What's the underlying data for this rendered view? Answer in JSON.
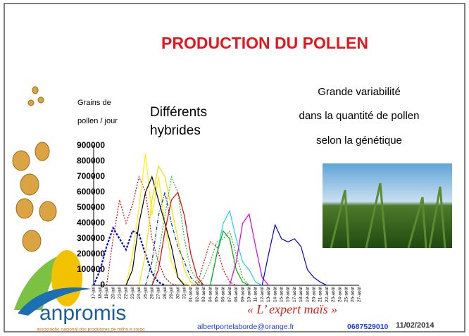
{
  "slide": {
    "title": "PRODUCTION DU POLLEN",
    "y_label": [
      "Grains de",
      "pollen / jour"
    ],
    "hybrid_note": [
      "Différents",
      "hybrides"
    ],
    "variability_note": [
      "Grande variabilité",
      "dans la quantité de pollen",
      "selon la génétique"
    ],
    "logo": "anpromis",
    "logo_subtitle": "associação nacional dos produtores de milho e sorgo",
    "slogan": "« L’ expert maïs »",
    "email": "albertportelaborde@orange.fr",
    "phone": "0687529010",
    "date": "11/02/2014"
  },
  "chart_data": {
    "type": "line",
    "categories": [
      "17-juil",
      "18-juil",
      "19-juil",
      "20-juil",
      "21-juil",
      "22-juil",
      "23-juil",
      "24-juil",
      "25-juil",
      "26-juil",
      "27-juil",
      "28-juil",
      "29-juil",
      "30-juil",
      "31-juil",
      "01-août",
      "02-août",
      "03-août",
      "04-août",
      "05-août",
      "06-août",
      "07-août",
      "08-août",
      "09-août",
      "10-août",
      "11-août",
      "12-août",
      "13-août",
      "14-août",
      "15-août",
      "16-août",
      "17-août",
      "18-août",
      "19-août",
      "20-août",
      "21-août",
      "22-août",
      "23-août",
      "24-août",
      "25-août",
      "26-août",
      "27-août"
    ],
    "ylim": [
      0,
      900000
    ],
    "yticks": [
      0,
      100000,
      200000,
      300000,
      400000,
      500000,
      600000,
      700000,
      800000,
      900000
    ],
    "series": [
      {
        "color": "#0000cc",
        "style": "dotted-thick",
        "values": [
          0,
          100000,
          250000,
          370000,
          300000,
          230000,
          350000,
          330000,
          200000,
          80000,
          20000,
          0,
          null,
          null,
          null,
          null,
          null,
          null,
          null,
          null,
          null,
          null,
          null,
          null,
          null,
          null,
          null,
          null,
          null,
          null,
          null,
          null,
          null,
          null,
          null,
          null,
          null,
          null,
          null,
          null,
          null,
          null
        ]
      },
      {
        "color": "#dd0000",
        "style": "dotted",
        "values": [
          null,
          null,
          0,
          300000,
          550000,
          400000,
          520000,
          700000,
          600000,
          300000,
          150000,
          50000,
          10000,
          0,
          null,
          null,
          null,
          null,
          null,
          null,
          null,
          null,
          null,
          null,
          null,
          null,
          null,
          null,
          null,
          null,
          null,
          null,
          null,
          null,
          null,
          null,
          null,
          null,
          null,
          null,
          null,
          null
        ]
      },
      {
        "color": "#ffee00",
        "style": "solid",
        "values": [
          null,
          null,
          null,
          null,
          null,
          0,
          200000,
          500000,
          850000,
          450000,
          700000,
          400000,
          150000,
          50000,
          10000,
          0,
          null,
          null,
          null,
          null,
          null,
          null,
          null,
          null,
          null,
          null,
          null,
          null,
          null,
          null,
          null,
          null,
          null,
          null,
          null,
          null,
          null,
          null,
          null,
          null,
          null,
          null
        ]
      },
      {
        "color": "#000000",
        "style": "solid",
        "values": [
          null,
          null,
          null,
          null,
          null,
          0,
          100000,
          400000,
          600000,
          700000,
          550000,
          400000,
          250000,
          50000,
          0,
          null,
          null,
          null,
          null,
          null,
          null,
          null,
          null,
          null,
          null,
          null,
          null,
          null,
          null,
          null,
          null,
          null,
          null,
          null,
          null,
          null,
          null,
          null,
          null,
          null,
          null,
          null
        ]
      },
      {
        "color": "#f5e000",
        "style": "solid",
        "values": [
          null,
          null,
          null,
          null,
          null,
          null,
          null,
          0,
          200000,
          550000,
          770000,
          700000,
          500000,
          300000,
          100000,
          20000,
          0,
          null,
          null,
          null,
          null,
          null,
          null,
          null,
          null,
          null,
          null,
          null,
          null,
          null,
          null,
          null,
          null,
          null,
          null,
          null,
          null,
          null,
          null,
          null,
          null,
          null
        ]
      },
      {
        "color": "#003399",
        "style": "dashdot",
        "values": [
          null,
          null,
          null,
          null,
          null,
          null,
          null,
          null,
          0,
          150000,
          450000,
          600000,
          400000,
          250000,
          150000,
          50000,
          10000,
          0,
          null,
          null,
          null,
          null,
          null,
          null,
          null,
          null,
          null,
          null,
          null,
          null,
          null,
          null,
          null,
          null,
          null,
          null,
          null,
          null,
          null,
          null,
          null,
          null
        ]
      },
      {
        "color": "#22bb22",
        "style": "dotted",
        "values": [
          null,
          null,
          null,
          null,
          null,
          null,
          null,
          null,
          null,
          0,
          200000,
          450000,
          700000,
          600000,
          300000,
          100000,
          30000,
          0,
          null,
          null,
          null,
          null,
          null,
          null,
          null,
          null,
          null,
          null,
          null,
          null,
          null,
          null,
          null,
          null,
          null,
          null,
          null,
          null,
          null,
          null,
          null,
          null
        ]
      },
      {
        "color": "#dd0000",
        "style": "solid",
        "values": [
          null,
          null,
          null,
          null,
          null,
          null,
          null,
          null,
          null,
          0,
          100000,
          350000,
          550000,
          600000,
          450000,
          200000,
          50000,
          0,
          null,
          null,
          null,
          null,
          null,
          null,
          null,
          null,
          null,
          null,
          null,
          null,
          null,
          null,
          null,
          null,
          null,
          null,
          null,
          null,
          null,
          null,
          null,
          null
        ]
      },
      {
        "color": "#22bb22",
        "style": "dotted",
        "values": [
          null,
          null,
          null,
          null,
          null,
          null,
          null,
          null,
          null,
          null,
          null,
          null,
          null,
          null,
          null,
          null,
          0,
          50000,
          150000,
          280000,
          300000,
          350000,
          200000,
          50000,
          0,
          null,
          null,
          null,
          null,
          null,
          null,
          null,
          null,
          null,
          null,
          null,
          null,
          null,
          null,
          null,
          null,
          null
        ]
      },
      {
        "color": "#dd0000",
        "style": "dotted",
        "values": [
          null,
          null,
          null,
          null,
          null,
          null,
          null,
          null,
          null,
          null,
          null,
          null,
          null,
          null,
          null,
          null,
          0,
          150000,
          280000,
          250000,
          100000,
          20000,
          0,
          null,
          null,
          null,
          null,
          null,
          null,
          null,
          null,
          null,
          null,
          null,
          null,
          null,
          null,
          null,
          null,
          null,
          null,
          null
        ]
      },
      {
        "color": "#22ccee",
        "style": "solid",
        "values": [
          null,
          null,
          null,
          null,
          null,
          null,
          null,
          null,
          null,
          null,
          null,
          null,
          null,
          null,
          null,
          null,
          null,
          null,
          0,
          200000,
          400000,
          480000,
          300000,
          150000,
          100000,
          20000,
          0,
          null,
          null,
          null,
          null,
          null,
          null,
          null,
          null,
          null,
          null,
          null,
          null,
          null,
          null,
          null
        ]
      },
      {
        "color": "#00aa00",
        "style": "solid",
        "values": [
          null,
          null,
          null,
          null,
          null,
          null,
          null,
          null,
          null,
          null,
          null,
          null,
          null,
          null,
          null,
          null,
          null,
          null,
          0,
          200000,
          350000,
          300000,
          100000,
          20000,
          0,
          null,
          null,
          null,
          null,
          null,
          null,
          null,
          null,
          null,
          null,
          null,
          null,
          null,
          null,
          null,
          null,
          null
        ]
      },
      {
        "color": "#dd00dd",
        "style": "solid",
        "values": [
          null,
          null,
          null,
          null,
          null,
          null,
          null,
          null,
          null,
          null,
          null,
          null,
          null,
          null,
          null,
          null,
          null,
          null,
          null,
          null,
          null,
          0,
          150000,
          400000,
          460000,
          250000,
          50000,
          0,
          null,
          null,
          null,
          null,
          null,
          null,
          null,
          null,
          null,
          null,
          null,
          null,
          null,
          null
        ]
      },
      {
        "color": "#0000cc",
        "style": "solid",
        "values": [
          null,
          null,
          null,
          null,
          null,
          null,
          null,
          null,
          null,
          null,
          null,
          null,
          null,
          null,
          null,
          null,
          null,
          null,
          null,
          null,
          null,
          null,
          null,
          null,
          null,
          null,
          0,
          200000,
          390000,
          300000,
          280000,
          300000,
          250000,
          100000,
          50000,
          20000,
          0,
          null,
          null,
          null,
          null,
          null
        ]
      }
    ]
  }
}
